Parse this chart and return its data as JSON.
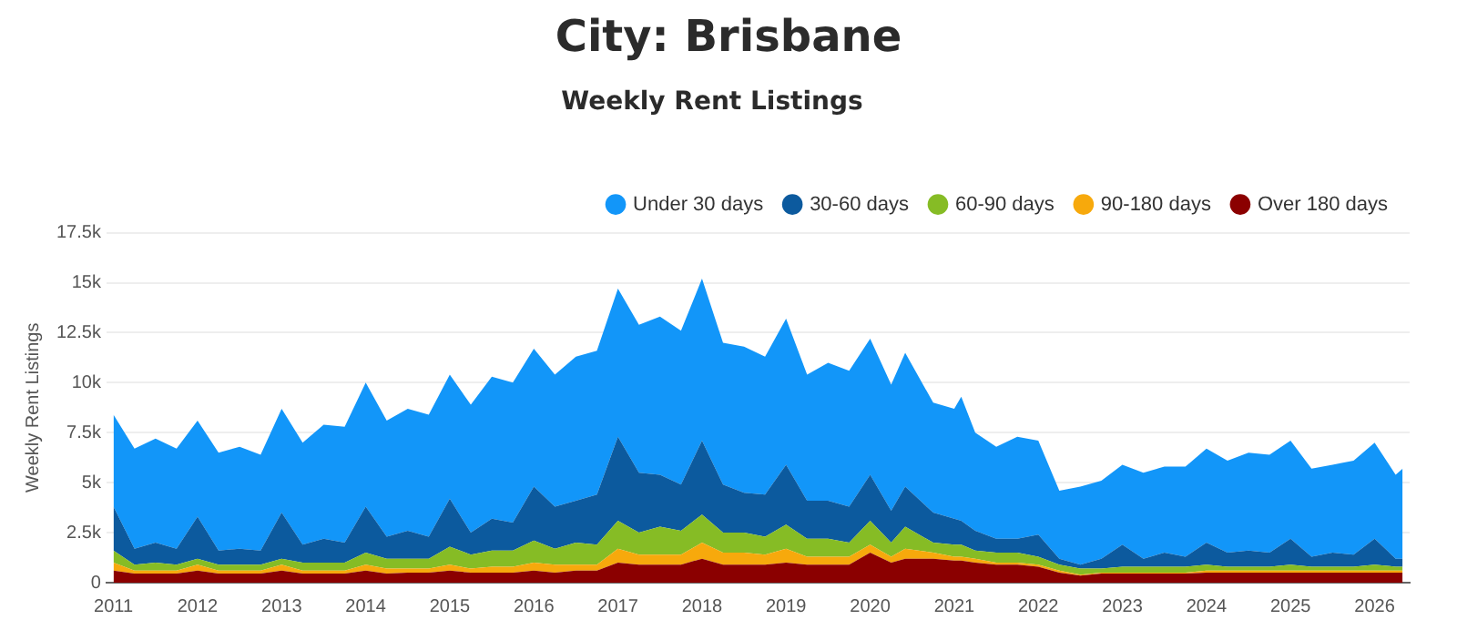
{
  "chart_data": {
    "type": "area",
    "title": "City: Brisbane",
    "subtitle": "Weekly Rent Listings",
    "ylabel": "Weekly Rent Listings",
    "stacked": true,
    "legend": "top right",
    "grid": "y",
    "marker": "none",
    "x": [
      "2011-01",
      "2011-04",
      "2011-07",
      "2011-10",
      "2012-01",
      "2012-04",
      "2012-07",
      "2012-10",
      "2013-01",
      "2013-04",
      "2013-07",
      "2013-10",
      "2014-01",
      "2014-04",
      "2014-07",
      "2014-10",
      "2015-01",
      "2015-04",
      "2015-07",
      "2015-10",
      "2016-01",
      "2016-04",
      "2016-07",
      "2016-10",
      "2017-01",
      "2017-04",
      "2017-07",
      "2017-10",
      "2018-01",
      "2018-04",
      "2018-07",
      "2018-10",
      "2019-01",
      "2019-04",
      "2019-07",
      "2019-10",
      "2020-01",
      "2020-04",
      "2020-06",
      "2020-10",
      "2021-01",
      "2021-02",
      "2021-04",
      "2021-07",
      "2021-10",
      "2022-01",
      "2022-04",
      "2022-07",
      "2022-10",
      "2023-01",
      "2023-04",
      "2023-07",
      "2023-10",
      "2024-01",
      "2024-04",
      "2024-07",
      "2024-10",
      "2025-01",
      "2025-04",
      "2025-07",
      "2025-10",
      "2026-01",
      "2026-04",
      "2026-05"
    ],
    "xlim": [
      "2010-12",
      "2026-06"
    ],
    "xticks": [
      "2011",
      "2012",
      "2013",
      "2014",
      "2015",
      "2016",
      "2017",
      "2018",
      "2019",
      "2020",
      "2021",
      "2022",
      "2023",
      "2024",
      "2025",
      "2026"
    ],
    "ylim": [
      0,
      17500
    ],
    "yticks": [
      0,
      {
        "value": 2500,
        "label": "2.5k"
      },
      {
        "value": 5000,
        "label": "5k"
      },
      {
        "value": 7500,
        "label": "7.5k"
      },
      {
        "value": 10000,
        "label": "10k"
      },
      {
        "value": 12500,
        "label": "12.5k"
      },
      {
        "value": 15000,
        "label": "15k"
      },
      {
        "value": 17500,
        "label": "17.5k"
      }
    ],
    "series": [
      {
        "name": "Over 180 days",
        "color": "#8b0000",
        "values": [
          600,
          450,
          450,
          450,
          600,
          450,
          450,
          450,
          600,
          450,
          450,
          450,
          600,
          450,
          500,
          500,
          600,
          500,
          500,
          500,
          600,
          500,
          600,
          600,
          1000,
          900,
          900,
          900,
          1200,
          900,
          900,
          900,
          1000,
          900,
          900,
          900,
          1500,
          1000,
          1200,
          1200,
          1100,
          1100,
          1000,
          900,
          900,
          800,
          500,
          350,
          450,
          450,
          450,
          450,
          450,
          500,
          500,
          500,
          500,
          500,
          500,
          500,
          500,
          500,
          500,
          500
        ]
      },
      {
        "name": "90-180 days",
        "color": "#f7a90c",
        "values": [
          400,
          150,
          150,
          150,
          300,
          150,
          150,
          150,
          300,
          150,
          150,
          150,
          300,
          250,
          200,
          200,
          300,
          200,
          300,
          300,
          400,
          400,
          300,
          300,
          700,
          500,
          500,
          500,
          800,
          600,
          600,
          500,
          700,
          400,
          400,
          400,
          400,
          300,
          500,
          300,
          200,
          200,
          200,
          100,
          100,
          100,
          100,
          50,
          50,
          50,
          50,
          50,
          50,
          100,
          100,
          100,
          100,
          100,
          100,
          100,
          100,
          100,
          100,
          100
        ]
      },
      {
        "name": "60-90 days",
        "color": "#86bc25",
        "values": [
          600,
          300,
          400,
          300,
          300,
          300,
          300,
          300,
          300,
          400,
          400,
          400,
          600,
          500,
          500,
          500,
          900,
          700,
          800,
          800,
          1100,
          800,
          1100,
          1000,
          1400,
          1100,
          1400,
          1200,
          1400,
          1000,
          1000,
          900,
          1200,
          900,
          900,
          700,
          1200,
          700,
          1100,
          500,
          600,
          600,
          400,
          500,
          500,
          400,
          300,
          300,
          200,
          300,
          300,
          300,
          300,
          300,
          200,
          200,
          200,
          300,
          200,
          200,
          200,
          300,
          200,
          200
        ]
      },
      {
        "name": "30-60 days",
        "color": "#0c5a9e",
        "values": [
          2200,
          800,
          1000,
          800,
          2100,
          700,
          800,
          700,
          2300,
          900,
          1200,
          1000,
          2300,
          1100,
          1400,
          1100,
          2400,
          1100,
          1600,
          1400,
          2700,
          2100,
          2100,
          2500,
          4200,
          3000,
          2600,
          2300,
          3700,
          2400,
          2000,
          2100,
          3000,
          1900,
          1900,
          1800,
          2300,
          1600,
          2000,
          1500,
          1300,
          1200,
          1000,
          700,
          700,
          1100,
          300,
          200,
          500,
          1100,
          400,
          700,
          500,
          1100,
          700,
          800,
          700,
          1300,
          500,
          700,
          600,
          1300,
          400,
          400
        ]
      },
      {
        "name": "Under 30 days",
        "color": "#1296f9",
        "values": [
          4600,
          5000,
          5200,
          5000,
          4800,
          4900,
          5100,
          4800,
          5200,
          5100,
          5700,
          5800,
          6200,
          5800,
          6100,
          6100,
          6200,
          6400,
          7100,
          7000,
          6900,
          6600,
          7200,
          7200,
          7400,
          7400,
          7900,
          7700,
          8100,
          7100,
          7300,
          6900,
          7300,
          6300,
          6900,
          6800,
          6800,
          6300,
          6700,
          5500,
          5500,
          6200,
          4900,
          4600,
          5100,
          4700,
          3400,
          3900,
          3900,
          4000,
          4300,
          4300,
          4500,
          4700,
          4600,
          4900,
          4900,
          4900,
          4400,
          4400,
          4700,
          4800,
          4200,
          4500
        ]
      }
    ]
  }
}
